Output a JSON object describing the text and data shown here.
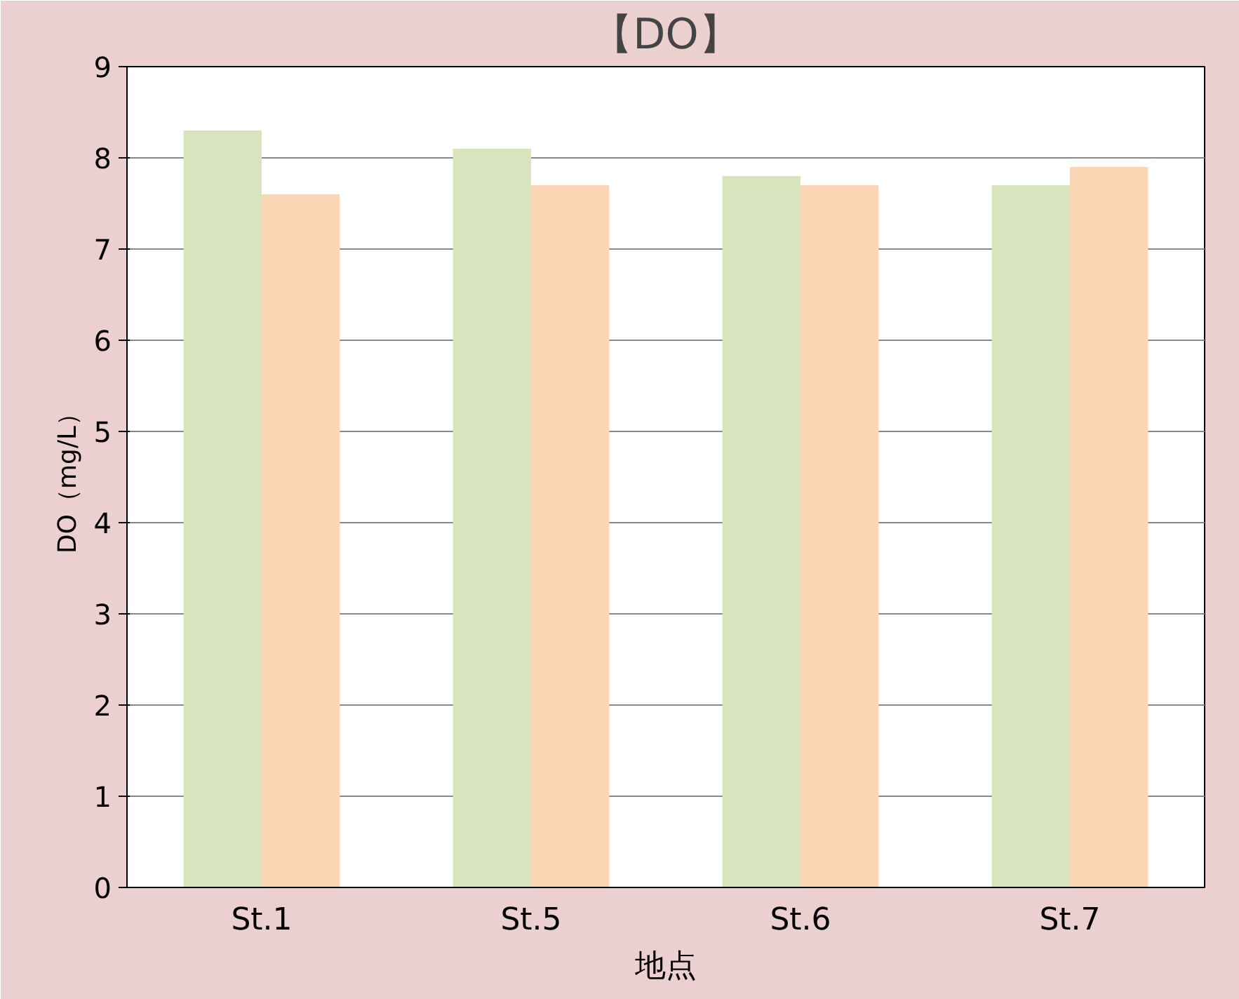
{
  "chart_data": {
    "type": "bar",
    "title": "【DO】",
    "xlabel": "地点",
    "ylabel": "DO（mg/L）",
    "categories": [
      "St.1",
      "St.5",
      "St.6",
      "St.7"
    ],
    "series": [
      {
        "color": "#d7e4bd",
        "values": [
          8.3,
          8.1,
          7.8,
          7.7
        ]
      },
      {
        "color": "#fcd5b5",
        "values": [
          7.6,
          7.7,
          7.7,
          7.9
        ]
      }
    ],
    "ylim": [
      0,
      9
    ],
    "yticks": [
      0,
      1,
      2,
      3,
      4,
      5,
      6,
      7,
      8,
      9
    ],
    "grid": "y"
  }
}
